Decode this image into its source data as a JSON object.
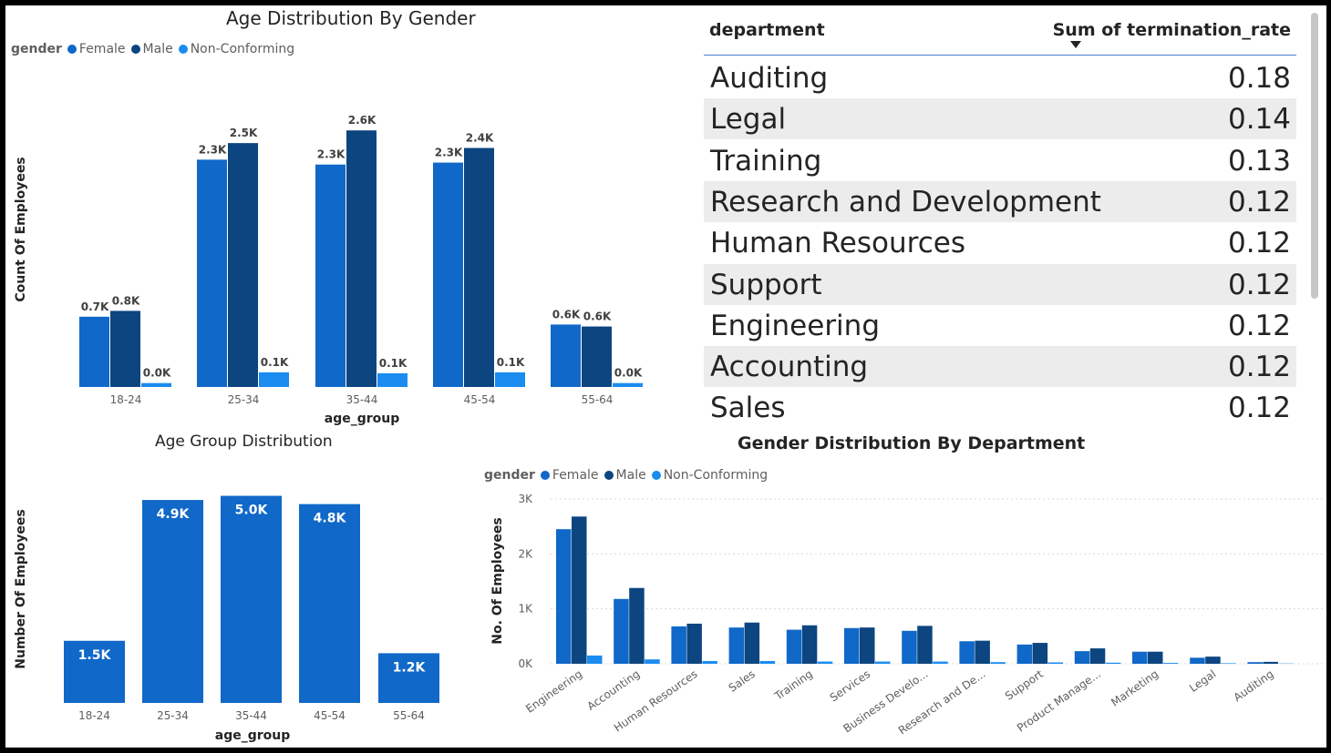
{
  "charts": {
    "age_gender": {
      "title": "Age Distribution By Gender",
      "legend_title": "gender",
      "legend": [
        "Female",
        "Male",
        "Non-Conforming"
      ],
      "xlabel": "age_group",
      "ylabel": "Count Of Employees"
    },
    "age_group": {
      "title": "Age Group Distribution",
      "xlabel": "age_group",
      "ylabel": "Number Of Employees"
    },
    "gender_dept": {
      "title": "Gender Distribution By Department",
      "legend_title": "gender",
      "legend": [
        "Female",
        "Male",
        "Non-Conforming"
      ],
      "ylabel": "No. Of Employees",
      "yticks": [
        "0K",
        "1K",
        "2K",
        "3K"
      ]
    }
  },
  "colors": {
    "female": "#1068c8",
    "male": "#0c4580",
    "nonconforming": "#1a8cf0"
  },
  "table": {
    "headers": {
      "department": "department",
      "value": "Sum of termination_rate"
    },
    "rows": [
      {
        "department": "Auditing",
        "value": "0.18"
      },
      {
        "department": "Legal",
        "value": "0.14"
      },
      {
        "department": "Training",
        "value": "0.13"
      },
      {
        "department": "Research and Development",
        "value": "0.12"
      },
      {
        "department": "Human Resources",
        "value": "0.12"
      },
      {
        "department": "Support",
        "value": "0.12"
      },
      {
        "department": "Engineering",
        "value": "0.12"
      },
      {
        "department": "Accounting",
        "value": "0.12"
      },
      {
        "department": "Sales",
        "value": "0.12"
      }
    ]
  },
  "chart_data": [
    {
      "type": "bar",
      "title": "Age Distribution By Gender",
      "xlabel": "age_group",
      "ylabel": "Count Of Employees",
      "categories": [
        "18-24",
        "25-34",
        "35-44",
        "45-54",
        "55-64"
      ],
      "series": [
        {
          "name": "Female",
          "values": [
            720,
            2330,
            2280,
            2300,
            640
          ],
          "labels": [
            "0.7K",
            "2.3K",
            "2.3K",
            "2.3K",
            "0.6K"
          ]
        },
        {
          "name": "Male",
          "values": [
            780,
            2500,
            2630,
            2450,
            620
          ],
          "labels": [
            "0.8K",
            "2.5K",
            "2.6K",
            "2.4K",
            "0.6K"
          ]
        },
        {
          "name": "Non-Conforming",
          "values": [
            40,
            150,
            140,
            150,
            40
          ],
          "labels": [
            "0.0K",
            "0.1K",
            "0.1K",
            "0.1K",
            "0.0K"
          ]
        }
      ],
      "ylim": [
        0,
        2800
      ],
      "legend_position": "top-left",
      "grid": false
    },
    {
      "type": "bar",
      "title": "Age Group Distribution",
      "xlabel": "age_group",
      "ylabel": "Number Of Employees",
      "categories": [
        "18-24",
        "25-34",
        "35-44",
        "45-54",
        "55-64"
      ],
      "values": [
        1500,
        4900,
        5000,
        4800,
        1200
      ],
      "labels": [
        "1.5K",
        "4.9K",
        "5.0K",
        "4.8K",
        "1.2K"
      ],
      "ylim": [
        0,
        5100
      ],
      "grid": false
    },
    {
      "type": "bar",
      "title": "Gender Distribution By Department",
      "ylabel": "No. Of Employees",
      "categories": [
        "Engineering",
        "Accounting",
        "Human Resources",
        "Sales",
        "Training",
        "Services",
        "Business Develo...",
        "Research and De...",
        "Support",
        "Product Manage...",
        "Marketing",
        "Legal",
        "Auditing"
      ],
      "series": [
        {
          "name": "Female",
          "values": [
            2450,
            1180,
            680,
            660,
            620,
            650,
            600,
            410,
            350,
            230,
            220,
            110,
            30
          ]
        },
        {
          "name": "Male",
          "values": [
            2680,
            1380,
            730,
            750,
            700,
            660,
            690,
            420,
            380,
            280,
            220,
            130,
            35
          ]
        },
        {
          "name": "Non-Conforming",
          "values": [
            150,
            80,
            50,
            50,
            40,
            40,
            40,
            30,
            25,
            20,
            15,
            10,
            5
          ]
        }
      ],
      "yticks": [
        0,
        1000,
        2000,
        3000
      ],
      "ylim": [
        0,
        3000
      ],
      "legend_position": "top-left",
      "grid": true
    }
  ]
}
